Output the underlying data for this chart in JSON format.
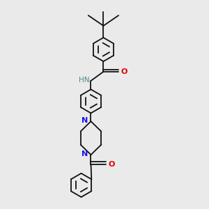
{
  "bg_color": "#eaeaea",
  "bond_color": "#111111",
  "N_color": "#1414ee",
  "O_color": "#dd0000",
  "NH_color": "#4a8a8a",
  "lw": 1.3,
  "dbo": 0.009,
  "r": 0.055,
  "xlim": [
    0.1,
    0.9
  ],
  "ylim": [
    0.02,
    0.98
  ]
}
